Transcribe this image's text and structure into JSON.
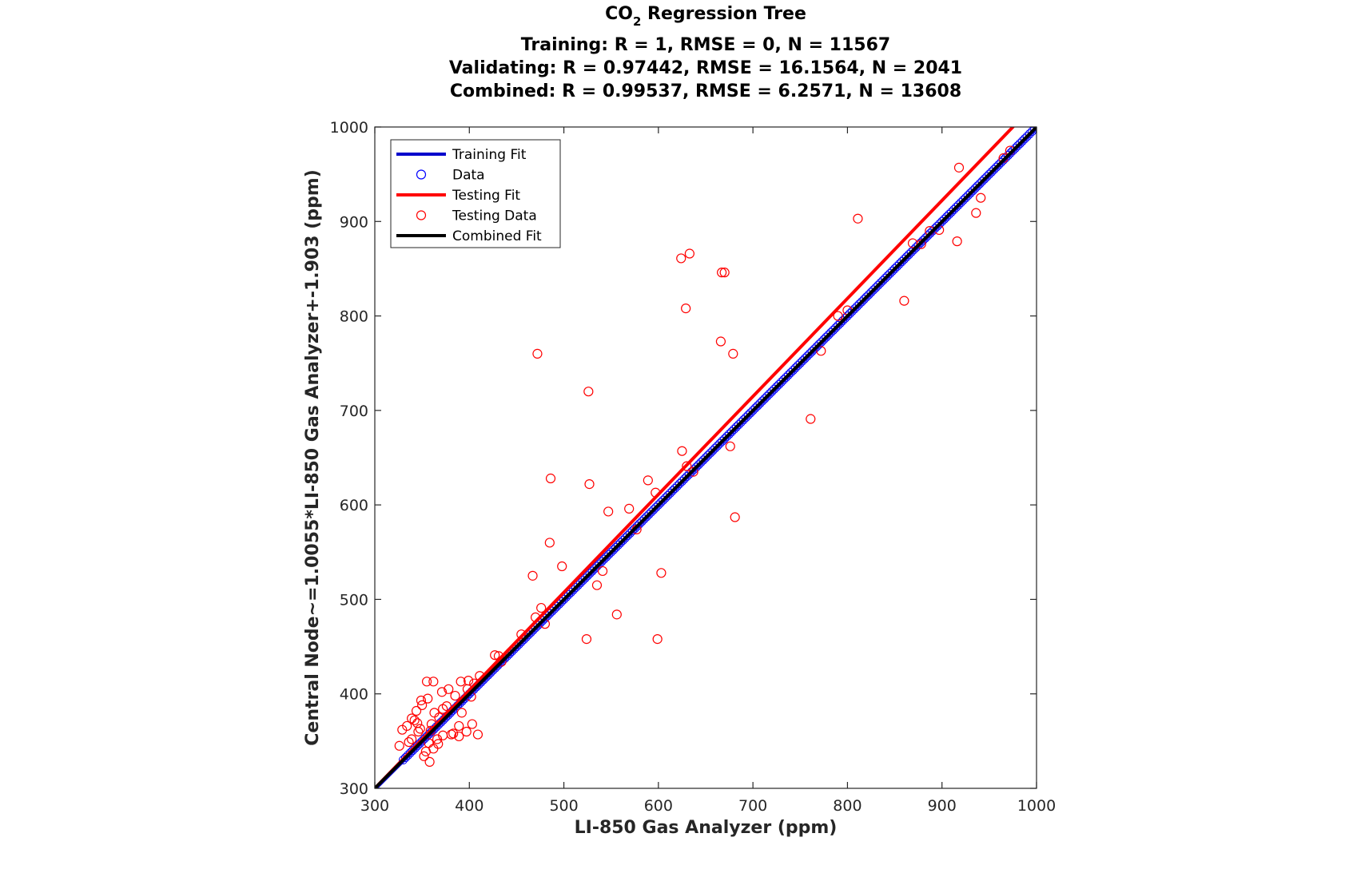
{
  "chart_data": {
    "type": "scatter",
    "title": {
      "main": "CO",
      "subscript": "2",
      "main_suffix": " Regression Tree",
      "lines": [
        "Training: R = 1, RMSE = 0, N = 11567",
        "Validating: R = 0.97442, RMSE = 16.1564, N = 2041",
        "Combined: R = 0.99537, RMSE = 6.2571, N = 13608"
      ]
    },
    "xlabel": "LI-850 Gas Analyzer (ppm)",
    "ylabel": "Central Node~=1.0055*LI-850 Gas Analyzer+-1.903 (ppm)",
    "xlim": [
      300,
      1000
    ],
    "ylim": [
      300,
      1000
    ],
    "xticks": [
      "300",
      "400",
      "500",
      "600",
      "700",
      "800",
      "900",
      "1000"
    ],
    "yticks": [
      "300",
      "400",
      "500",
      "600",
      "700",
      "800",
      "900",
      "1000"
    ],
    "grid": false,
    "legend_position": "top-left",
    "legend": [
      {
        "label": "Training Fit",
        "kind": "line",
        "color": "#0000CC"
      },
      {
        "label": "Data",
        "kind": "marker",
        "color": "#0000FF"
      },
      {
        "label": "Testing Fit",
        "kind": "line",
        "color": "#FF0000"
      },
      {
        "label": "Testing Data",
        "kind": "marker",
        "color": "#FF0000"
      },
      {
        "label": "Combined Fit",
        "kind": "line",
        "color": "#000000"
      }
    ],
    "fits": [
      {
        "name": "Training Fit",
        "color": "#0000CC",
        "x": [
          300,
          1000
        ],
        "y": [
          300,
          1000
        ]
      },
      {
        "name": "Testing Fit",
        "color": "#FF0000",
        "x": [
          300,
          975
        ],
        "y": [
          300,
          1000
        ]
      },
      {
        "name": "Combined Fit",
        "color": "#000000",
        "x": [
          300,
          1000
        ],
        "y": [
          300,
          1000
        ]
      }
    ],
    "training_data": {
      "color": "#0000FF",
      "x": [
        330,
        350,
        380,
        420,
        460,
        500,
        540,
        580,
        620,
        660,
        700,
        740,
        780,
        820,
        860,
        900,
        940,
        970,
        990,
        998
      ],
      "y": [
        330,
        350,
        380,
        420,
        460,
        500,
        540,
        580,
        620,
        660,
        700,
        740,
        780,
        820,
        860,
        900,
        940,
        970,
        990,
        998
      ]
    },
    "testing_data": {
      "color": "#FF0000",
      "x": [
        472,
        526,
        486,
        527,
        589,
        597,
        547,
        569,
        577,
        485,
        498,
        467,
        535,
        541,
        556,
        524,
        599,
        603,
        625,
        629,
        633,
        624,
        666,
        670,
        667,
        679,
        676,
        681,
        630,
        637,
        761,
        772,
        811,
        860,
        918,
        936,
        941,
        916,
        965,
        972,
        887,
        897,
        878,
        869,
        790,
        800,
        480,
        476,
        470,
        455,
        434,
        427,
        431,
        411,
        405,
        398,
        391,
        385,
        378,
        371,
        362,
        355,
        349,
        344,
        339,
        334,
        329,
        326,
        352,
        358,
        366,
        372,
        381,
        389,
        397,
        403,
        409,
        346,
        356,
        363,
        372,
        354,
        339,
        350,
        360,
        368,
        383,
        392,
        402,
        342,
        336,
        362,
        348,
        357,
        367,
        376,
        389,
        399,
        345,
        359
      ],
      "y": [
        760,
        720,
        628,
        622,
        626,
        613,
        593,
        596,
        574,
        560,
        535,
        525,
        515,
        530,
        484,
        458,
        458,
        528,
        657,
        808,
        866,
        861,
        773,
        846,
        846,
        760,
        662,
        587,
        641,
        635,
        691,
        763,
        903,
        816,
        957,
        909,
        925,
        879,
        967,
        975,
        890,
        891,
        876,
        877,
        800,
        806,
        474,
        491,
        481,
        463,
        434,
        441,
        440,
        419,
        411,
        405,
        413,
        398,
        405,
        402,
        413,
        413,
        393,
        382,
        374,
        366,
        362,
        345,
        334,
        328,
        352,
        356,
        357,
        366,
        360,
        368,
        357,
        360,
        395,
        380,
        384,
        339,
        352,
        388,
        368,
        375,
        358,
        380,
        397,
        372,
        349,
        342,
        363,
        348,
        347,
        387,
        355,
        414,
        369,
        361
      ]
    }
  }
}
